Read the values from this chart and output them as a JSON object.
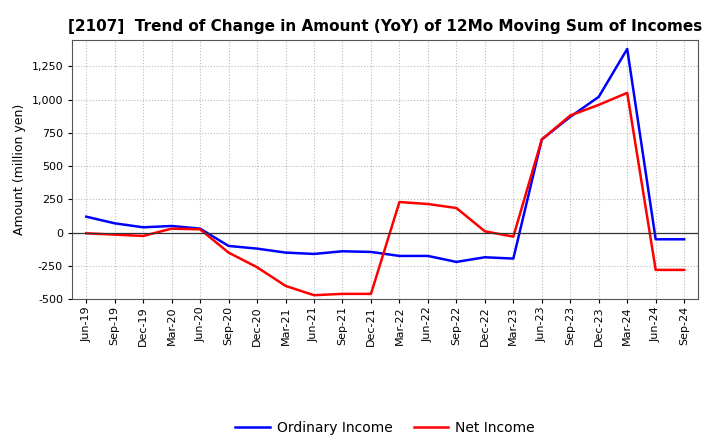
{
  "title": "[2107]  Trend of Change in Amount (YoY) of 12Mo Moving Sum of Incomes",
  "ylabel": "Amount (million yen)",
  "ylim": [
    -500,
    1450
  ],
  "yticks": [
    -500,
    -250,
    0,
    250,
    500,
    750,
    1000,
    1250
  ],
  "ordinary_income_color": "#0000FF",
  "net_income_color": "#FF0000",
  "line_width": 1.8,
  "x_labels": [
    "Jun-19",
    "Sep-19",
    "Dec-19",
    "Mar-20",
    "Jun-20",
    "Sep-20",
    "Dec-20",
    "Mar-21",
    "Jun-21",
    "Sep-21",
    "Dec-21",
    "Mar-22",
    "Jun-22",
    "Sep-22",
    "Dec-22",
    "Mar-23",
    "Jun-23",
    "Sep-23",
    "Dec-23",
    "Mar-24",
    "Jun-24",
    "Sep-24"
  ],
  "ordinary_income": [
    120,
    70,
    40,
    50,
    30,
    -100,
    -120,
    -150,
    -160,
    -140,
    -145,
    -175,
    -175,
    -220,
    -185,
    -195,
    700,
    870,
    1020,
    1380,
    -50,
    -50
  ],
  "net_income": [
    -5,
    -15,
    -25,
    30,
    25,
    -150,
    -260,
    -400,
    -470,
    -460,
    -460,
    230,
    215,
    185,
    10,
    -30,
    700,
    880,
    960,
    1050,
    -280,
    -280
  ],
  "background_color": "#ffffff",
  "grid_color": "#bbbbbb",
  "legend_ordinary": "Ordinary Income",
  "legend_net": "Net Income",
  "title_fontsize": 11,
  "ylabel_fontsize": 9,
  "tick_fontsize": 8,
  "legend_fontsize": 10
}
